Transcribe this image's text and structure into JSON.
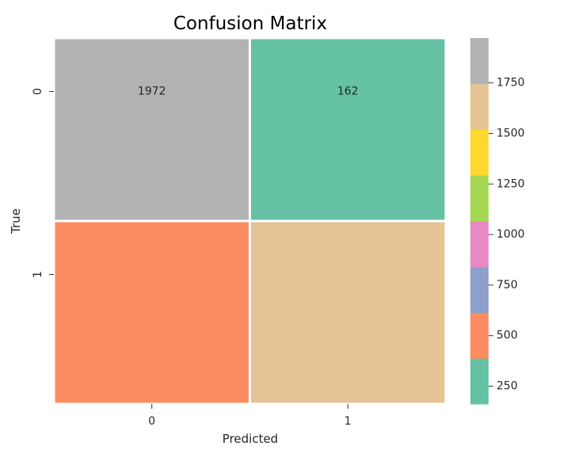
{
  "chart_data": {
    "type": "heatmap",
    "title": "Confusion Matrix",
    "xlabel": "Predicted",
    "ylabel": "True",
    "x_categories": [
      "0",
      "1"
    ],
    "y_categories": [
      "0",
      "1"
    ],
    "values": [
      [
        1972,
        162
      ],
      [
        null,
        null
      ]
    ],
    "cell_labels": [
      [
        "1972",
        "162"
      ],
      [
        "",
        ""
      ]
    ],
    "cell_colors": [
      [
        "#b3b3b3",
        "#66c2a5"
      ],
      [
        "#fc8d62",
        "#e5c494"
      ]
    ],
    "colorbar": {
      "range": [
        162,
        1972
      ],
      "ticks": [
        250,
        500,
        750,
        1000,
        1250,
        1500,
        1750
      ],
      "colors": [
        "#66c2a5",
        "#fc8d62",
        "#8da0cb",
        "#e78ac3",
        "#a6d854",
        "#ffd92f",
        "#e5c494",
        "#b3b3b3"
      ]
    },
    "grid": false,
    "colorbar_placement": "right"
  }
}
